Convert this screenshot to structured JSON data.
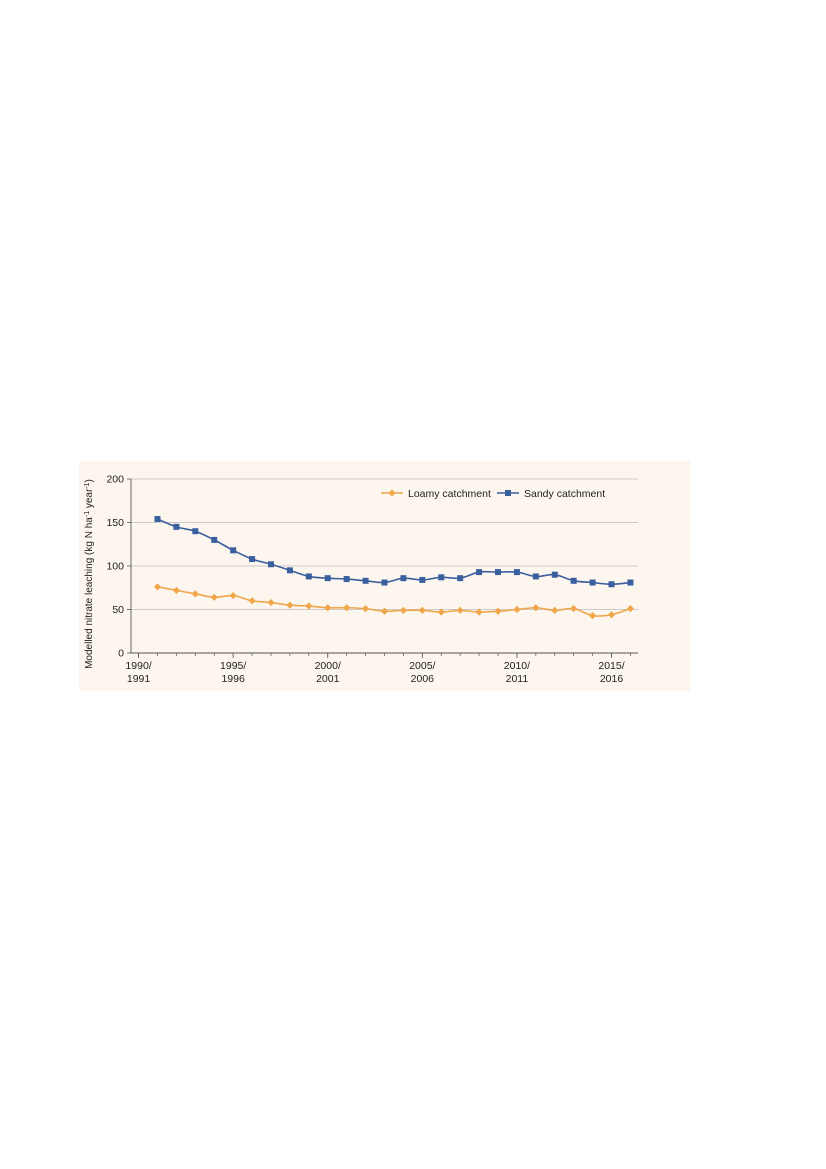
{
  "chart_data": {
    "type": "line",
    "title": "",
    "ylabel": "Modelled nitrate leaching (kg N ha",
    "ylabel_sup1": "-1",
    "ylabel_mid": " year",
    "ylabel_sup2": "-1",
    "ylabel_end": ")",
    "xlabel": "",
    "ylim": [
      0,
      200
    ],
    "yticks": [
      "0",
      "50",
      "100",
      "150",
      "200"
    ],
    "xlim": [
      1989.6,
      2016.4
    ],
    "xticks": [
      {
        "x": 1990,
        "line1": "1990/",
        "line2": "1991"
      },
      {
        "x": 1995,
        "line1": "1995/",
        "line2": "1996"
      },
      {
        "x": 2000,
        "line1": "2000/",
        "line2": "2001"
      },
      {
        "x": 2005,
        "line1": "2005/",
        "line2": "2006"
      },
      {
        "x": 2010,
        "line1": "2010/",
        "line2": "2011"
      },
      {
        "x": 2015,
        "line1": "2015/",
        "line2": "2016"
      }
    ],
    "grid": "horizontal",
    "legend_position": "top-right",
    "x": [
      1991,
      1992,
      1993,
      1994,
      1995,
      1996,
      1997,
      1998,
      1999,
      2000,
      2001,
      2002,
      2003,
      2004,
      2005,
      2006,
      2007,
      2008,
      2009,
      2010,
      2011,
      2012,
      2013,
      2014,
      2015,
      2016
    ],
    "series": [
      {
        "name": "Loamy catchment",
        "color": "#f0a64a",
        "marker": "diamond",
        "values": [
          76,
          72,
          68,
          64,
          66,
          60,
          58,
          55,
          54,
          52,
          52,
          51,
          48,
          49,
          49,
          47,
          49,
          47,
          48,
          50,
          52,
          49,
          51,
          43,
          44,
          51
        ]
      },
      {
        "name": "Sandy catchment",
        "color": "#3a5f9e",
        "marker": "square",
        "values": [
          154,
          145,
          140,
          130,
          118,
          108,
          102,
          95,
          88,
          86,
          85,
          83,
          81,
          86,
          84,
          87,
          86,
          93,
          93,
          93,
          88,
          90,
          83,
          81,
          79,
          81
        ]
      }
    ]
  }
}
